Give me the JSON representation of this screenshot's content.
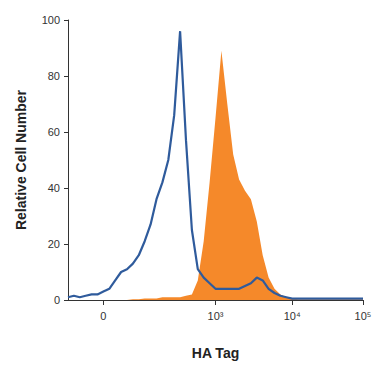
{
  "chart_data": {
    "type": "line",
    "xlabel": "HA Tag",
    "ylabel": "Relative Cell Number",
    "categories": [
      null,
      null,
      null,
      null,
      null,
      null,
      "0",
      null,
      null,
      null,
      null,
      null,
      null,
      null,
      null,
      null,
      null,
      null,
      null,
      null,
      null,
      null,
      null,
      null,
      null,
      "10³",
      null,
      null,
      null,
      null,
      null,
      null,
      null,
      null,
      null,
      null,
      null,
      null,
      "10⁴",
      null,
      null,
      null,
      null,
      null,
      null,
      null,
      null,
      null,
      null,
      null,
      "10⁵"
    ],
    "series": [
      {
        "type": "area",
        "color": "#f5892a",
        "values": [
          0,
          0,
          0,
          0,
          0,
          0,
          0,
          0,
          0,
          0,
          0,
          0.3,
          0.3,
          0.5,
          0.5,
          0.5,
          1,
          1,
          1,
          1,
          1.5,
          2,
          7,
          21,
          42,
          65,
          89,
          70,
          52,
          43,
          39,
          36,
          28,
          16,
          8,
          4,
          2,
          1,
          0.5,
          0.3,
          0.3,
          0.3,
          0.3,
          0.3,
          0.3,
          0.3,
          0.3,
          0.3,
          0.3,
          0.3,
          0.3
        ]
      },
      {
        "type": "line",
        "color": "#2f5b9c",
        "values": [
          1,
          1.5,
          1,
          1.5,
          2,
          2,
          3,
          4,
          7,
          10,
          11,
          13,
          16,
          21,
          27,
          36,
          42,
          50,
          66,
          96,
          57,
          25,
          11,
          8,
          6,
          4,
          4,
          4,
          4,
          4,
          5,
          6,
          8,
          7,
          4,
          2.5,
          1.5,
          1,
          0.5,
          0.5,
          0.5,
          0.5,
          0.5,
          0.5,
          0.5,
          0.5,
          0.5,
          0.5,
          0.5,
          0.5,
          0.5
        ]
      }
    ],
    "ylim": [
      0,
      100
    ],
    "yticks": [
      0,
      20,
      40,
      60,
      80,
      100
    ],
    "grid": false
  }
}
